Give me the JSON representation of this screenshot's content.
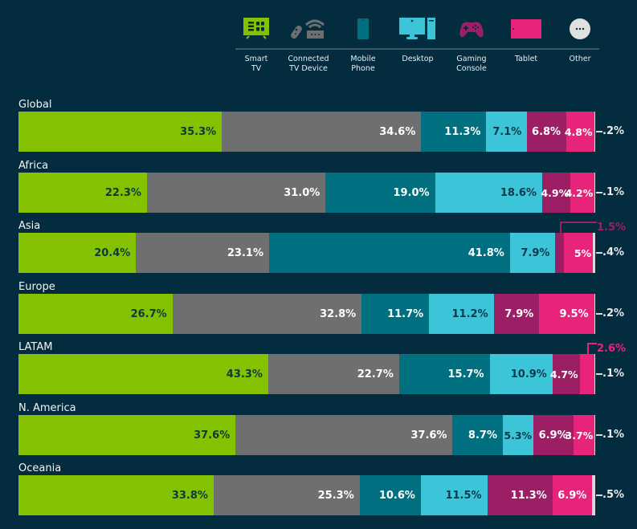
{
  "legend": {
    "items": [
      {
        "key": "smart_tv",
        "label": "Smart\nTV",
        "icon": "smart-tv-icon",
        "color": "#84c100"
      },
      {
        "key": "connected_tv",
        "label": "Connected\nTV Device",
        "icon": "connected-tv-device-icon",
        "color": "#6d6f70"
      },
      {
        "key": "mobile",
        "label": "Mobile\nPhone",
        "icon": "mobile-phone-icon",
        "color": "#007080"
      },
      {
        "key": "desktop",
        "label": "Desktop",
        "icon": "desktop-icon",
        "color": "#3cc4d8"
      },
      {
        "key": "gaming",
        "label": "Gaming\nConsole",
        "icon": "gaming-console-icon",
        "color": "#9c1f66"
      },
      {
        "key": "tablet",
        "label": "Tablet",
        "icon": "tablet-icon",
        "color": "#e8247a"
      },
      {
        "key": "other",
        "label": "Other",
        "icon": "other-icon",
        "color": "#d9d9d9"
      }
    ]
  },
  "chart_data": {
    "type": "bar",
    "orientation": "horizontal",
    "stacked": true,
    "normalized": true,
    "title": "",
    "xlabel": "",
    "ylabel": "",
    "xlim": [
      0,
      100
    ],
    "grid": false,
    "legend_position": "top-right",
    "categories": [
      "Global",
      "Africa",
      "Asia",
      "Europe",
      "LATAM",
      "N. America",
      "Oceania"
    ],
    "series": [
      {
        "name": "Smart TV",
        "color": "#84c100",
        "label_color": "#0d3a38",
        "values": [
          35.3,
          22.3,
          20.4,
          26.7,
          43.3,
          37.6,
          33.8
        ],
        "labels": [
          "35.3%",
          "22.3%",
          "20.4%",
          "26.7%",
          "43.3%",
          "37.6%",
          "33.8%"
        ]
      },
      {
        "name": "Connected TV Device",
        "color": "#6d6f70",
        "label_color": "#ffffff",
        "values": [
          34.6,
          31.0,
          23.1,
          32.8,
          22.7,
          37.6,
          25.3
        ],
        "labels": [
          "34.6%",
          "31.0%",
          "23.1%",
          "32.8%",
          "22.7%",
          "37.6%",
          "25.3%"
        ]
      },
      {
        "name": "Mobile Phone",
        "color": "#007080",
        "label_color": "#ffffff",
        "values": [
          11.3,
          19.0,
          41.8,
          11.7,
          15.7,
          8.7,
          10.6
        ],
        "labels": [
          "11.3%",
          "19.0%",
          "41.8%",
          "11.7%",
          "15.7%",
          "8.7%",
          "10.6%"
        ]
      },
      {
        "name": "Desktop",
        "color": "#3cc4d8",
        "label_color": "#0d3a4a",
        "values": [
          7.1,
          18.6,
          7.9,
          11.2,
          10.9,
          5.3,
          11.5
        ],
        "labels": [
          "7.1%",
          "18.6%",
          "7.9%",
          "11.2%",
          "10.9%",
          "5.3%",
          "11.5%"
        ]
      },
      {
        "name": "Gaming Console",
        "color": "#9c1f66",
        "label_color": "#ffffff",
        "values": [
          6.8,
          4.9,
          1.5,
          7.9,
          4.7,
          6.9,
          11.3
        ],
        "labels": [
          "6.8%",
          "4.9%",
          "",
          "7.9%",
          "4.7%",
          "6.9%",
          "11.3%"
        ]
      },
      {
        "name": "Tablet",
        "color": "#e8247a",
        "label_color": "#ffffff",
        "values": [
          4.8,
          4.2,
          5.0,
          9.5,
          2.6,
          3.7,
          6.9
        ],
        "labels": [
          "4.8%",
          "4.2%",
          "5%",
          "9.5%",
          "",
          "3.7%",
          "6.9%"
        ]
      },
      {
        "name": "Other",
        "color": "#d9d9d9",
        "label_color": "#e8ecee",
        "values": [
          0.2,
          0.1,
          0.4,
          0.2,
          0.1,
          0.1,
          0.5
        ],
        "labels": [
          ".2%",
          ".1%",
          ".4%",
          ".2%",
          ".1%",
          ".1%",
          ".5%"
        ]
      }
    ],
    "callouts": [
      {
        "category": "Asia",
        "series": "Gaming Console",
        "text": "1.5%",
        "color": "#9c1f66"
      },
      {
        "category": "LATAM",
        "series": "Tablet",
        "text": "2.6%",
        "color": "#e8247a"
      }
    ]
  }
}
